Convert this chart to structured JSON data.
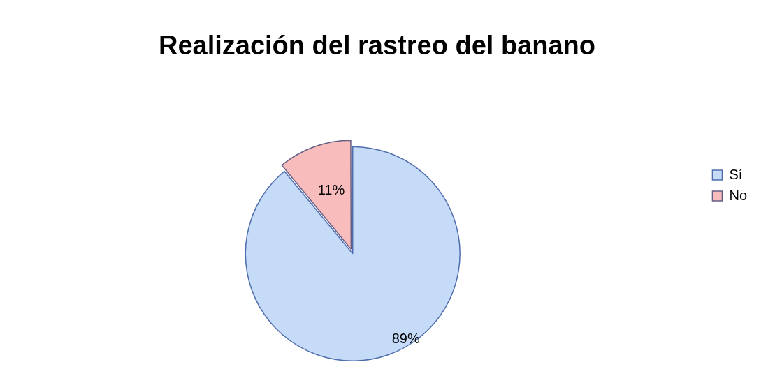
{
  "chart_data": {
    "type": "pie",
    "title": "Realización del rastreo del banano",
    "categories": [
      "Sí",
      "No"
    ],
    "values": [
      89,
      11
    ],
    "colors": [
      "#c6dbf8",
      "#f8bcbc"
    ],
    "value_labels": [
      "89%",
      "11%"
    ],
    "legend": "right"
  }
}
